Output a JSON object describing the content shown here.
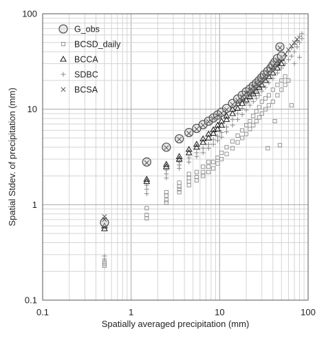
{
  "chart_data": {
    "type": "scatter",
    "xlabel": "Spatially averaged precipitation (mm)",
    "ylabel": "Spatial Stdev. of precipitation (mm)",
    "xscale": "log",
    "yscale": "log",
    "xlim": [
      0.1,
      100
    ],
    "ylim": [
      0.1,
      100
    ],
    "x_ticks": [
      "0.1",
      "1",
      "10",
      "100"
    ],
    "y_ticks": [
      "0.1",
      "1",
      "10",
      "100"
    ],
    "grid": "major and minor",
    "legend_position": "top-left",
    "series": [
      {
        "name": "G_obs",
        "marker": "circle",
        "points": [
          [
            0.5,
            0.65
          ],
          [
            1.5,
            2.8
          ],
          [
            2.5,
            4.0
          ],
          [
            3.5,
            4.9
          ],
          [
            4.5,
            5.7
          ],
          [
            5.5,
            6.3
          ],
          [
            6.5,
            6.9
          ],
          [
            7.5,
            7.5
          ],
          [
            8.5,
            8.1
          ],
          [
            9.5,
            8.7
          ],
          [
            10.5,
            9.3
          ],
          [
            12,
            10.2
          ],
          [
            14,
            11.5
          ],
          [
            16,
            12.8
          ],
          [
            18,
            14.0
          ],
          [
            20,
            15.2
          ],
          [
            22,
            16.3
          ],
          [
            24,
            17.5
          ],
          [
            26,
            18.7
          ],
          [
            28,
            20.0
          ],
          [
            30,
            21.5
          ],
          [
            32,
            23
          ],
          [
            35,
            25
          ],
          [
            38,
            27
          ],
          [
            40,
            29
          ],
          [
            42,
            31
          ],
          [
            45,
            34
          ],
          [
            50,
            36
          ],
          [
            48,
            45
          ]
        ]
      },
      {
        "name": "BCSD_daily",
        "marker": "square",
        "points": [
          [
            0.5,
            0.23
          ],
          [
            0.5,
            0.24
          ],
          [
            0.5,
            0.25
          ],
          [
            1.5,
            0.72
          ],
          [
            1.5,
            0.78
          ],
          [
            1.5,
            0.92
          ],
          [
            2.5,
            1.05
          ],
          [
            2.5,
            1.12
          ],
          [
            2.5,
            1.25
          ],
          [
            2.5,
            1.35
          ],
          [
            3.5,
            1.35
          ],
          [
            3.5,
            1.45
          ],
          [
            3.5,
            1.55
          ],
          [
            3.5,
            1.7
          ],
          [
            4.5,
            1.6
          ],
          [
            4.5,
            1.75
          ],
          [
            4.5,
            1.9
          ],
          [
            4.5,
            2.1
          ],
          [
            5.5,
            1.8
          ],
          [
            5.5,
            1.95
          ],
          [
            5.5,
            2.2
          ],
          [
            6.5,
            2.0
          ],
          [
            6.5,
            2.2
          ],
          [
            6.5,
            2.5
          ],
          [
            7.5,
            2.2
          ],
          [
            7.5,
            2.5
          ],
          [
            7.5,
            2.8
          ],
          [
            8.5,
            2.4
          ],
          [
            8.5,
            2.8
          ],
          [
            9.5,
            2.7
          ],
          [
            9.5,
            3.1
          ],
          [
            10.5,
            3.0
          ],
          [
            10.5,
            3.5
          ],
          [
            12,
            3.4
          ],
          [
            12,
            4.0
          ],
          [
            14,
            3.9
          ],
          [
            14,
            4.6
          ],
          [
            16,
            4.5
          ],
          [
            16,
            5.3
          ],
          [
            18,
            5.0
          ],
          [
            18,
            6.0
          ],
          [
            20,
            5.5
          ],
          [
            20,
            6.8
          ],
          [
            22,
            6.2
          ],
          [
            22,
            7.5
          ],
          [
            24,
            6.8
          ],
          [
            24,
            8.5
          ],
          [
            26,
            7.5
          ],
          [
            26,
            9.5
          ],
          [
            28,
            8.2
          ],
          [
            28,
            10.5
          ],
          [
            30,
            9.0
          ],
          [
            30,
            12
          ],
          [
            33,
            10
          ],
          [
            33,
            13
          ],
          [
            36,
            11
          ],
          [
            36,
            14
          ],
          [
            40,
            12
          ],
          [
            40,
            16
          ],
          [
            45,
            14
          ],
          [
            45,
            18
          ],
          [
            50,
            16
          ],
          [
            50,
            20
          ],
          [
            55,
            18
          ],
          [
            55,
            22
          ],
          [
            60,
            20
          ],
          [
            65,
            11
          ],
          [
            35,
            3.9
          ],
          [
            48,
            4.2
          ],
          [
            42,
            7.5
          ]
        ]
      },
      {
        "name": "BCCA",
        "marker": "triangle",
        "points": [
          [
            0.5,
            0.56
          ],
          [
            0.5,
            0.6
          ],
          [
            1.5,
            1.75
          ],
          [
            1.5,
            1.85
          ],
          [
            2.5,
            2.5
          ],
          [
            2.5,
            2.65
          ],
          [
            3.5,
            3.0
          ],
          [
            3.5,
            3.2
          ],
          [
            4.5,
            3.5
          ],
          [
            4.5,
            3.8
          ],
          [
            5.5,
            4.0
          ],
          [
            5.5,
            4.3
          ],
          [
            6.5,
            4.5
          ],
          [
            6.5,
            4.9
          ],
          [
            7.5,
            5.0
          ],
          [
            7.5,
            5.5
          ],
          [
            8.5,
            5.6
          ],
          [
            8.5,
            6.1
          ],
          [
            9.5,
            6.2
          ],
          [
            9.5,
            6.8
          ],
          [
            10.5,
            6.8
          ],
          [
            10.5,
            7.5
          ],
          [
            12,
            7.8
          ],
          [
            12,
            8.5
          ],
          [
            14,
            9.0
          ],
          [
            14,
            10
          ],
          [
            16,
            10.2
          ],
          [
            16,
            11.5
          ],
          [
            18,
            11.5
          ],
          [
            18,
            13
          ],
          [
            20,
            12.5
          ],
          [
            20,
            14.5
          ],
          [
            22,
            13.5
          ],
          [
            22,
            16
          ],
          [
            24,
            14.5
          ],
          [
            24,
            17
          ],
          [
            26,
            15.5
          ],
          [
            26,
            18.5
          ],
          [
            28,
            17
          ],
          [
            28,
            20
          ],
          [
            30,
            18
          ],
          [
            30,
            22
          ],
          [
            33,
            20
          ],
          [
            33,
            24
          ],
          [
            36,
            22
          ],
          [
            36,
            26
          ],
          [
            40,
            24
          ],
          [
            40,
            28
          ],
          [
            45,
            27
          ],
          [
            45,
            31
          ],
          [
            50,
            30
          ],
          [
            50,
            34
          ]
        ]
      },
      {
        "name": "SDBC",
        "marker": "plus",
        "points": [
          [
            0.5,
            0.27
          ],
          [
            0.5,
            0.29
          ],
          [
            1.5,
            1.3
          ],
          [
            1.5,
            1.45
          ],
          [
            1.5,
            1.6
          ],
          [
            2.5,
            1.9
          ],
          [
            2.5,
            2.1
          ],
          [
            2.5,
            2.3
          ],
          [
            3.5,
            2.4
          ],
          [
            3.5,
            2.6
          ],
          [
            3.5,
            2.8
          ],
          [
            4.5,
            2.8
          ],
          [
            4.5,
            3.1
          ],
          [
            5.5,
            3.2
          ],
          [
            5.5,
            3.5
          ],
          [
            6.5,
            3.5
          ],
          [
            6.5,
            3.9
          ],
          [
            7.5,
            3.9
          ],
          [
            7.5,
            4.3
          ],
          [
            8.5,
            4.3
          ],
          [
            8.5,
            4.8
          ],
          [
            9.5,
            4.7
          ],
          [
            9.5,
            5.2
          ],
          [
            10.5,
            5.1
          ],
          [
            10.5,
            5.7
          ],
          [
            12,
            5.8
          ],
          [
            12,
            6.5
          ],
          [
            14,
            6.8
          ],
          [
            14,
            7.8
          ],
          [
            16,
            7.8
          ],
          [
            16,
            9.0
          ],
          [
            18,
            8.8
          ],
          [
            18,
            10.2
          ],
          [
            20,
            9.8
          ],
          [
            20,
            11.5
          ],
          [
            22,
            11
          ],
          [
            22,
            13
          ],
          [
            24,
            12
          ],
          [
            24,
            14.5
          ],
          [
            26,
            13
          ],
          [
            26,
            16
          ],
          [
            28,
            14
          ],
          [
            28,
            17.5
          ],
          [
            30,
            15.5
          ],
          [
            30,
            19
          ],
          [
            33,
            17
          ],
          [
            33,
            21
          ],
          [
            36,
            19
          ],
          [
            36,
            23
          ],
          [
            40,
            21
          ],
          [
            40,
            26
          ],
          [
            45,
            24
          ],
          [
            45,
            29
          ],
          [
            50,
            27
          ],
          [
            50,
            33
          ],
          [
            55,
            30
          ],
          [
            55,
            36
          ],
          [
            60,
            33
          ],
          [
            60,
            40
          ],
          [
            65,
            36
          ],
          [
            65,
            44
          ],
          [
            70,
            40
          ],
          [
            70,
            48
          ],
          [
            75,
            45
          ],
          [
            75,
            52
          ],
          [
            80,
            50
          ],
          [
            80,
            58
          ],
          [
            85,
            55
          ],
          [
            85,
            62
          ],
          [
            70,
            30
          ],
          [
            80,
            35
          ]
        ]
      },
      {
        "name": "BCSA",
        "marker": "x",
        "points": [
          [
            0.5,
            0.7
          ],
          [
            0.5,
            0.75
          ],
          [
            1.5,
            2.75
          ],
          [
            2.5,
            3.95
          ],
          [
            3.5,
            4.85
          ],
          [
            4.5,
            5.6
          ],
          [
            5.5,
            6.2
          ],
          [
            6.5,
            6.8
          ],
          [
            7.5,
            7.4
          ],
          [
            8.5,
            8.0
          ],
          [
            9.5,
            8.6
          ],
          [
            10.5,
            9.1
          ],
          [
            12,
            9.9
          ],
          [
            14,
            11.2
          ],
          [
            16,
            12.4
          ],
          [
            18,
            13.6
          ],
          [
            20,
            14.8
          ],
          [
            22,
            15.8
          ],
          [
            24,
            17
          ],
          [
            26,
            18
          ],
          [
            28,
            19.2
          ],
          [
            30,
            20.5
          ],
          [
            32,
            22
          ],
          [
            35,
            24
          ],
          [
            38,
            26
          ],
          [
            40,
            28
          ],
          [
            42,
            30
          ],
          [
            45,
            32
          ],
          [
            48,
            44
          ],
          [
            55,
            38
          ],
          [
            60,
            42
          ],
          [
            65,
            46
          ],
          [
            70,
            50
          ],
          [
            75,
            54
          ]
        ]
      }
    ]
  }
}
